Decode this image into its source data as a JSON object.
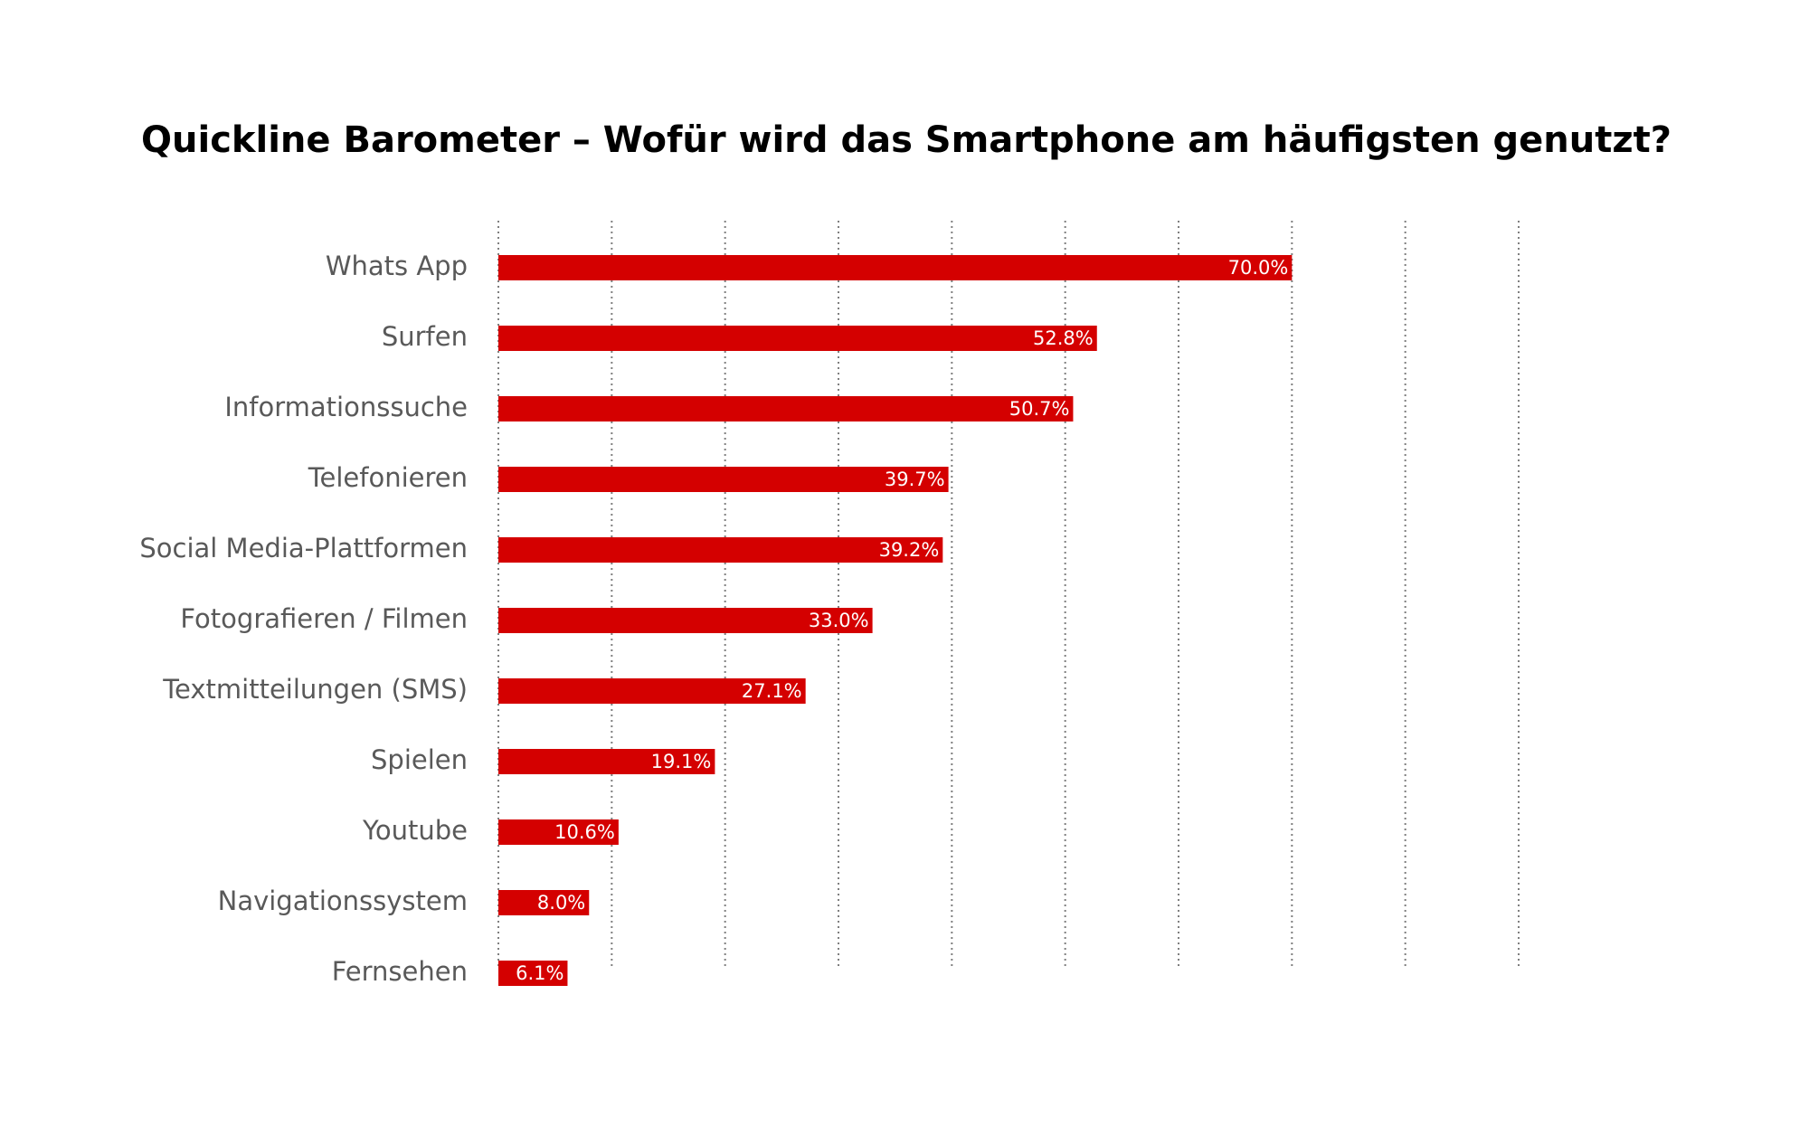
{
  "chart_data": {
    "type": "bar",
    "orientation": "horizontal",
    "title": "Quickline Barometer – Wofür wird das Smartphone am häufigsten genutzt?",
    "categories": [
      "Whats App",
      "Surfen",
      "Informationssuche",
      "Telefonieren",
      "Social Media-Plattformen",
      "Fotografieren / Filmen",
      "Textmitteilungen (SMS)",
      "Spielen",
      "Youtube",
      "Navigationssystem",
      "Fernsehen"
    ],
    "values": [
      70.0,
      52.8,
      50.7,
      39.7,
      39.2,
      33.0,
      27.1,
      19.1,
      10.6,
      8.0,
      6.1
    ],
    "value_labels": [
      "70.0%",
      "52.8%",
      "50.7%",
      "39.7%",
      "39.2%",
      "33.0%",
      "27.1%",
      "19.1%",
      "10.6%",
      "8.0%",
      "6.1%"
    ],
    "xlim": [
      0,
      90
    ],
    "grid_step": 10,
    "grid": true,
    "grid_style": "dotted-vertical",
    "legend": "none",
    "bar_color": "#d40000",
    "value_label_color": "#ffffff",
    "category_label_color": "#595959"
  }
}
